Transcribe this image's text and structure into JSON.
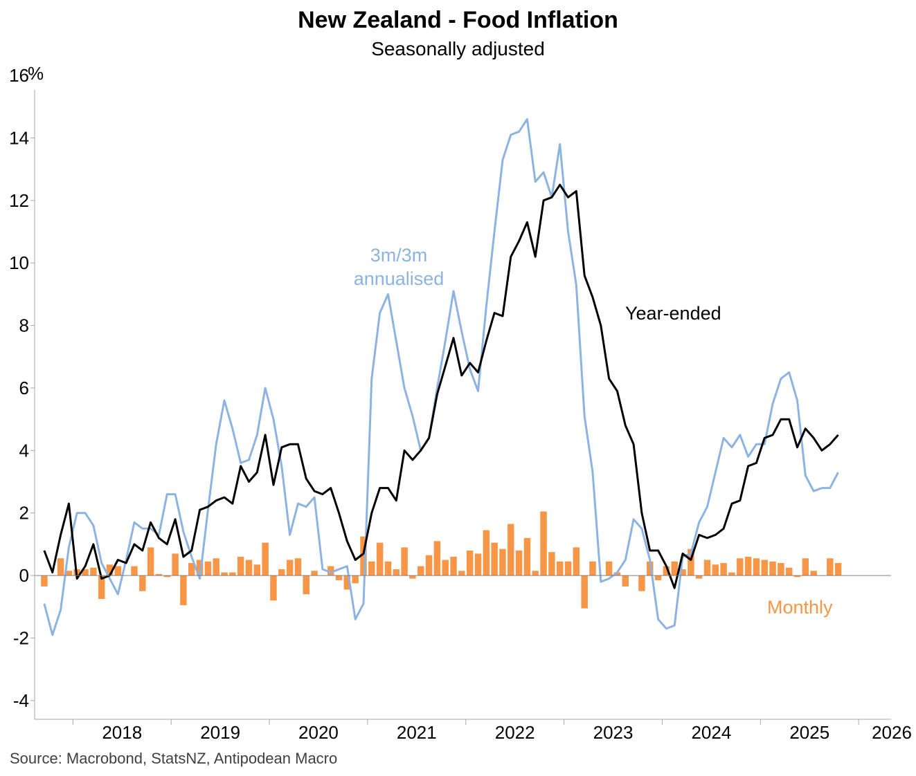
{
  "title": "New Zealand - Food Inflation",
  "subtitle": "Seasonally adjusted",
  "source": "Source: Macrobond, StatsNZ, Antipodean Macro",
  "chart_data": {
    "type": "bar",
    "y_unit_label": "%",
    "ylim": [
      -4.6,
      16.2
    ],
    "yticks": [
      -4,
      -2,
      0,
      2,
      4,
      6,
      8,
      10,
      12,
      14,
      16
    ],
    "xlim": [
      2017.61,
      2026.33
    ],
    "x_year_labels": [
      "2018",
      "2019",
      "2020",
      "2021",
      "2022",
      "2023",
      "2024",
      "2025",
      "2026"
    ],
    "start_month": "2017-09",
    "grid": false,
    "colors": {
      "year_ended": "#000000",
      "three_month": "#8cb3e1",
      "monthly": "#f79646",
      "axis": "#a6a6a6"
    },
    "annotations": {
      "three_month_line1": "3m/3m",
      "three_month_line2": "annualised",
      "year_ended": "Year-ended",
      "monthly": "Monthly"
    },
    "series": [
      {
        "name": "Year-ended",
        "type": "line",
        "values": [
          0.8,
          0.1,
          1.3,
          2.3,
          -0.1,
          0.3,
          1.0,
          -0.1,
          0.0,
          0.5,
          0.4,
          1.0,
          0.8,
          1.7,
          1.2,
          1.0,
          1.8,
          0.6,
          0.8,
          2.1,
          2.2,
          2.4,
          2.5,
          2.3,
          3.5,
          3.0,
          3.3,
          4.5,
          2.9,
          4.1,
          4.2,
          4.2,
          3.1,
          2.7,
          2.6,
          2.8,
          2.0,
          1.1,
          0.5,
          0.7,
          2.0,
          2.8,
          2.8,
          2.4,
          4.0,
          3.7,
          4.0,
          4.4,
          5.8,
          6.7,
          7.6,
          6.4,
          6.8,
          6.5,
          7.5,
          8.4,
          8.3,
          10.2,
          10.7,
          11.3,
          10.2,
          12.0,
          12.1,
          12.5,
          12.1,
          12.3,
          9.6,
          8.9,
          8.0,
          6.3,
          5.9,
          4.8,
          4.2,
          2.0,
          0.8,
          0.8,
          0.3,
          -0.4,
          0.7,
          0.5,
          1.3,
          1.2,
          1.3,
          1.5,
          2.3,
          2.4,
          3.5,
          3.6,
          4.4,
          4.5,
          5.0,
          5.0,
          4.1,
          4.7,
          4.4,
          4.0,
          4.2,
          4.5
        ]
      },
      {
        "name": "3m/3m annualised",
        "type": "line",
        "values": [
          -0.9,
          -1.9,
          -1.1,
          0.9,
          2.0,
          2.0,
          1.6,
          0.4,
          -0.1,
          -0.6,
          0.5,
          1.7,
          1.5,
          1.5,
          1.3,
          2.6,
          2.6,
          1.4,
          0.6,
          -0.1,
          2.1,
          4.2,
          5.6,
          4.7,
          3.6,
          3.7,
          4.5,
          6.0,
          5.0,
          3.5,
          1.3,
          2.3,
          2.2,
          2.5,
          0.2,
          0.1,
          0.2,
          0.3,
          -1.4,
          -0.9,
          6.3,
          8.4,
          9.0,
          7.5,
          6.0,
          5.1,
          4.0,
          4.4,
          6.0,
          7.5,
          9.1,
          7.8,
          6.6,
          5.9,
          8.6,
          11.0,
          13.3,
          14.1,
          14.2,
          14.6,
          12.6,
          12.9,
          12.1,
          13.8,
          11.0,
          9.3,
          5.1,
          3.3,
          -0.2,
          -0.1,
          0.1,
          0.5,
          1.8,
          1.5,
          0.5,
          -1.4,
          -1.7,
          -1.6,
          0.6,
          0.7,
          1.7,
          2.2,
          3.3,
          4.4,
          4.1,
          4.5,
          3.8,
          4.2,
          4.2,
          5.5,
          6.3,
          6.5,
          5.6,
          3.2,
          2.7,
          2.8,
          2.8,
          3.3
        ]
      },
      {
        "name": "Monthly",
        "type": "bar",
        "values": [
          -0.35,
          0.0,
          0.55,
          0.15,
          0.2,
          0.2,
          0.25,
          -0.75,
          0.35,
          0.3,
          0.0,
          0.3,
          -0.5,
          0.9,
          0.05,
          -0.05,
          0.7,
          -0.95,
          0.4,
          0.5,
          0.45,
          0.55,
          0.1,
          0.1,
          0.6,
          0.5,
          0.35,
          1.05,
          -0.8,
          0.2,
          0.5,
          0.55,
          -0.6,
          0.15,
          0.0,
          0.3,
          -0.15,
          -0.45,
          -0.25,
          1.25,
          0.45,
          1.05,
          0.45,
          0.2,
          0.9,
          -0.1,
          0.3,
          0.65,
          1.1,
          0.5,
          0.6,
          0.15,
          0.8,
          0.7,
          1.45,
          1.05,
          0.85,
          1.65,
          0.8,
          1.2,
          0.15,
          2.05,
          0.75,
          0.45,
          0.45,
          0.9,
          -1.05,
          0.45,
          0.0,
          0.45,
          0.1,
          -0.35,
          0.0,
          -0.5,
          0.45,
          -0.15,
          0.3,
          0.45,
          0.2,
          0.85,
          -0.1,
          0.5,
          0.35,
          0.4,
          0.1,
          0.55,
          0.6,
          0.55,
          0.5,
          0.45,
          0.4,
          0.25,
          -0.05,
          0.55,
          0.15,
          0.0,
          0.55,
          0.4
        ]
      }
    ]
  }
}
